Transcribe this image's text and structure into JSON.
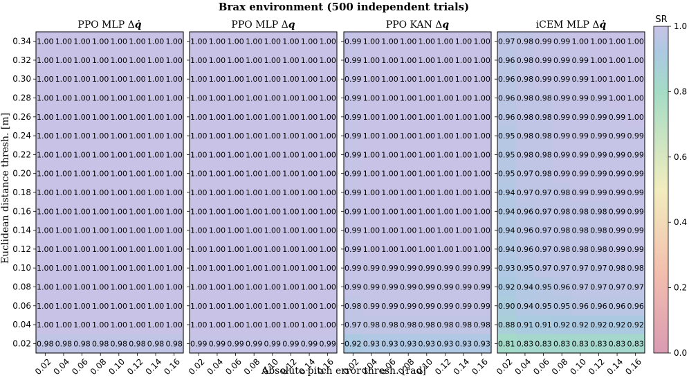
{
  "suptitle": "Brax environment (500 independent trials)",
  "xlabel": "Absolute pitch error thresh. [rad]",
  "ylabel": "Euclidean distance thresh. [m]",
  "colorbar": {
    "label": "SR",
    "ticks": [
      "0.0",
      "0.2",
      "0.4",
      "0.6",
      "0.8",
      "1.0"
    ],
    "range": [
      0.0,
      1.0
    ],
    "colormap": "spectral-like, low=pink #d99bb2, mid=cream #f2edbe, 0.8=aqua #a4dcc6, high=lavender #c8c3e6"
  },
  "chart_data": [
    {
      "type": "heatmap",
      "title": "PPO MLP Δq̇",
      "title_text": "PPO MLP Δ",
      "title_symbol": "q̇",
      "x": [
        "0.02",
        "0.04",
        "0.06",
        "0.08",
        "0.10",
        "0.12",
        "0.14",
        "0.16"
      ],
      "y": [
        "0.34",
        "0.32",
        "0.30",
        "0.28",
        "0.26",
        "0.24",
        "0.22",
        "0.20",
        "0.18",
        "0.16",
        "0.14",
        "0.12",
        "0.10",
        "0.08",
        "0.06",
        "0.04",
        "0.02"
      ],
      "values": [
        [
          "1.00",
          "1.00",
          "1.00",
          "1.00",
          "1.00",
          "1.00",
          "1.00",
          "1.00"
        ],
        [
          "1.00",
          "1.00",
          "1.00",
          "1.00",
          "1.00",
          "1.00",
          "1.00",
          "1.00"
        ],
        [
          "1.00",
          "1.00",
          "1.00",
          "1.00",
          "1.00",
          "1.00",
          "1.00",
          "1.00"
        ],
        [
          "1.00",
          "1.00",
          "1.00",
          "1.00",
          "1.00",
          "1.00",
          "1.00",
          "1.00"
        ],
        [
          "1.00",
          "1.00",
          "1.00",
          "1.00",
          "1.00",
          "1.00",
          "1.00",
          "1.00"
        ],
        [
          "1.00",
          "1.00",
          "1.00",
          "1.00",
          "1.00",
          "1.00",
          "1.00",
          "1.00"
        ],
        [
          "1.00",
          "1.00",
          "1.00",
          "1.00",
          "1.00",
          "1.00",
          "1.00",
          "1.00"
        ],
        [
          "1.00",
          "1.00",
          "1.00",
          "1.00",
          "1.00",
          "1.00",
          "1.00",
          "1.00"
        ],
        [
          "1.00",
          "1.00",
          "1.00",
          "1.00",
          "1.00",
          "1.00",
          "1.00",
          "1.00"
        ],
        [
          "1.00",
          "1.00",
          "1.00",
          "1.00",
          "1.00",
          "1.00",
          "1.00",
          "1.00"
        ],
        [
          "1.00",
          "1.00",
          "1.00",
          "1.00",
          "1.00",
          "1.00",
          "1.00",
          "1.00"
        ],
        [
          "1.00",
          "1.00",
          "1.00",
          "1.00",
          "1.00",
          "1.00",
          "1.00",
          "1.00"
        ],
        [
          "1.00",
          "1.00",
          "1.00",
          "1.00",
          "1.00",
          "1.00",
          "1.00",
          "1.00"
        ],
        [
          "1.00",
          "1.00",
          "1.00",
          "1.00",
          "1.00",
          "1.00",
          "1.00",
          "1.00"
        ],
        [
          "1.00",
          "1.00",
          "1.00",
          "1.00",
          "1.00",
          "1.00",
          "1.00",
          "1.00"
        ],
        [
          "1.00",
          "1.00",
          "1.00",
          "1.00",
          "1.00",
          "1.00",
          "1.00",
          "1.00"
        ],
        [
          "0.98",
          "0.98",
          "0.98",
          "0.98",
          "0.98",
          "0.98",
          "0.98",
          "0.98"
        ]
      ]
    },
    {
      "type": "heatmap",
      "title": "PPO MLP Δq",
      "title_text": "PPO MLP Δ",
      "title_symbol": "q",
      "x": [
        "0.02",
        "0.04",
        "0.06",
        "0.08",
        "0.10",
        "0.12",
        "0.14",
        "0.16"
      ],
      "y": [
        "0.34",
        "0.32",
        "0.30",
        "0.28",
        "0.26",
        "0.24",
        "0.22",
        "0.20",
        "0.18",
        "0.16",
        "0.14",
        "0.12",
        "0.10",
        "0.08",
        "0.06",
        "0.04",
        "0.02"
      ],
      "values": [
        [
          "1.00",
          "1.00",
          "1.00",
          "1.00",
          "1.00",
          "1.00",
          "1.00",
          "1.00"
        ],
        [
          "1.00",
          "1.00",
          "1.00",
          "1.00",
          "1.00",
          "1.00",
          "1.00",
          "1.00"
        ],
        [
          "1.00",
          "1.00",
          "1.00",
          "1.00",
          "1.00",
          "1.00",
          "1.00",
          "1.00"
        ],
        [
          "1.00",
          "1.00",
          "1.00",
          "1.00",
          "1.00",
          "1.00",
          "1.00",
          "1.00"
        ],
        [
          "1.00",
          "1.00",
          "1.00",
          "1.00",
          "1.00",
          "1.00",
          "1.00",
          "1.00"
        ],
        [
          "1.00",
          "1.00",
          "1.00",
          "1.00",
          "1.00",
          "1.00",
          "1.00",
          "1.00"
        ],
        [
          "1.00",
          "1.00",
          "1.00",
          "1.00",
          "1.00",
          "1.00",
          "1.00",
          "1.00"
        ],
        [
          "1.00",
          "1.00",
          "1.00",
          "1.00",
          "1.00",
          "1.00",
          "1.00",
          "1.00"
        ],
        [
          "1.00",
          "1.00",
          "1.00",
          "1.00",
          "1.00",
          "1.00",
          "1.00",
          "1.00"
        ],
        [
          "1.00",
          "1.00",
          "1.00",
          "1.00",
          "1.00",
          "1.00",
          "1.00",
          "1.00"
        ],
        [
          "1.00",
          "1.00",
          "1.00",
          "1.00",
          "1.00",
          "1.00",
          "1.00",
          "1.00"
        ],
        [
          "1.00",
          "1.00",
          "1.00",
          "1.00",
          "1.00",
          "1.00",
          "1.00",
          "1.00"
        ],
        [
          "1.00",
          "1.00",
          "1.00",
          "1.00",
          "1.00",
          "1.00",
          "1.00",
          "1.00"
        ],
        [
          "1.00",
          "1.00",
          "1.00",
          "1.00",
          "1.00",
          "1.00",
          "1.00",
          "1.00"
        ],
        [
          "1.00",
          "1.00",
          "1.00",
          "1.00",
          "1.00",
          "1.00",
          "1.00",
          "1.00"
        ],
        [
          "1.00",
          "1.00",
          "1.00",
          "1.00",
          "1.00",
          "1.00",
          "1.00",
          "1.00"
        ],
        [
          "0.99",
          "0.99",
          "0.99",
          "0.99",
          "0.99",
          "0.99",
          "0.99",
          "0.99"
        ]
      ]
    },
    {
      "type": "heatmap",
      "title": "PPO KAN Δq",
      "title_text": "PPO KAN Δ",
      "title_symbol": "q",
      "x": [
        "0.02",
        "0.04",
        "0.06",
        "0.08",
        "0.10",
        "0.12",
        "0.14",
        "0.16"
      ],
      "y": [
        "0.34",
        "0.32",
        "0.30",
        "0.28",
        "0.26",
        "0.24",
        "0.22",
        "0.20",
        "0.18",
        "0.16",
        "0.14",
        "0.12",
        "0.10",
        "0.08",
        "0.06",
        "0.04",
        "0.02"
      ],
      "values": [
        [
          "0.99",
          "1.00",
          "1.00",
          "1.00",
          "1.00",
          "1.00",
          "1.00",
          "1.00"
        ],
        [
          "0.99",
          "1.00",
          "1.00",
          "1.00",
          "1.00",
          "1.00",
          "1.00",
          "1.00"
        ],
        [
          "0.99",
          "1.00",
          "1.00",
          "1.00",
          "1.00",
          "1.00",
          "1.00",
          "1.00"
        ],
        [
          "0.99",
          "1.00",
          "1.00",
          "1.00",
          "1.00",
          "1.00",
          "1.00",
          "1.00"
        ],
        [
          "0.99",
          "1.00",
          "1.00",
          "1.00",
          "1.00",
          "1.00",
          "1.00",
          "1.00"
        ],
        [
          "0.99",
          "1.00",
          "1.00",
          "1.00",
          "1.00",
          "1.00",
          "1.00",
          "1.00"
        ],
        [
          "0.99",
          "1.00",
          "1.00",
          "1.00",
          "1.00",
          "1.00",
          "1.00",
          "1.00"
        ],
        [
          "0.99",
          "1.00",
          "1.00",
          "1.00",
          "1.00",
          "1.00",
          "1.00",
          "1.00"
        ],
        [
          "0.99",
          "1.00",
          "1.00",
          "1.00",
          "1.00",
          "1.00",
          "1.00",
          "1.00"
        ],
        [
          "0.99",
          "1.00",
          "1.00",
          "1.00",
          "1.00",
          "1.00",
          "1.00",
          "1.00"
        ],
        [
          "0.99",
          "1.00",
          "1.00",
          "1.00",
          "1.00",
          "1.00",
          "1.00",
          "1.00"
        ],
        [
          "0.99",
          "1.00",
          "1.00",
          "1.00",
          "1.00",
          "1.00",
          "1.00",
          "1.00"
        ],
        [
          "0.99",
          "0.99",
          "0.99",
          "0.99",
          "0.99",
          "0.99",
          "0.99",
          "0.99"
        ],
        [
          "0.99",
          "0.99",
          "0.99",
          "0.99",
          "0.99",
          "0.99",
          "0.99",
          "0.99"
        ],
        [
          "0.98",
          "0.99",
          "0.99",
          "0.99",
          "0.99",
          "0.99",
          "0.99",
          "0.99"
        ],
        [
          "0.97",
          "0.98",
          "0.98",
          "0.98",
          "0.98",
          "0.98",
          "0.98",
          "0.98"
        ],
        [
          "0.92",
          "0.93",
          "0.93",
          "0.93",
          "0.93",
          "0.93",
          "0.93",
          "0.93"
        ]
      ]
    },
    {
      "type": "heatmap",
      "title": "iCEM MLP Δq̇",
      "title_text": "iCEM MLP Δ",
      "title_symbol": "q̇",
      "x": [
        "0.02",
        "0.04",
        "0.06",
        "0.08",
        "0.10",
        "0.12",
        "0.14",
        "0.16"
      ],
      "y": [
        "0.34",
        "0.32",
        "0.30",
        "0.28",
        "0.26",
        "0.24",
        "0.22",
        "0.20",
        "0.18",
        "0.16",
        "0.14",
        "0.12",
        "0.10",
        "0.08",
        "0.06",
        "0.04",
        "0.02"
      ],
      "values": [
        [
          "0.97",
          "0.98",
          "0.99",
          "0.99",
          "1.00",
          "1.00",
          "1.00",
          "1.00"
        ],
        [
          "0.96",
          "0.98",
          "0.99",
          "0.99",
          "0.99",
          "1.00",
          "1.00",
          "1.00"
        ],
        [
          "0.96",
          "0.98",
          "0.99",
          "0.99",
          "0.99",
          "1.00",
          "1.00",
          "1.00"
        ],
        [
          "0.96",
          "0.98",
          "0.98",
          "0.99",
          "0.99",
          "0.99",
          "1.00",
          "1.00"
        ],
        [
          "0.96",
          "0.98",
          "0.98",
          "0.99",
          "0.99",
          "0.99",
          "0.99",
          "1.00"
        ],
        [
          "0.95",
          "0.98",
          "0.98",
          "0.99",
          "0.99",
          "0.99",
          "0.99",
          "0.99"
        ],
        [
          "0.95",
          "0.98",
          "0.98",
          "0.99",
          "0.99",
          "0.99",
          "0.99",
          "0.99"
        ],
        [
          "0.95",
          "0.97",
          "0.98",
          "0.99",
          "0.99",
          "0.99",
          "0.99",
          "0.99"
        ],
        [
          "0.94",
          "0.97",
          "0.97",
          "0.98",
          "0.99",
          "0.99",
          "0.99",
          "0.99"
        ],
        [
          "0.94",
          "0.96",
          "0.97",
          "0.98",
          "0.98",
          "0.98",
          "0.99",
          "0.99"
        ],
        [
          "0.94",
          "0.96",
          "0.97",
          "0.98",
          "0.98",
          "0.98",
          "0.99",
          "0.99"
        ],
        [
          "0.94",
          "0.96",
          "0.97",
          "0.98",
          "0.98",
          "0.98",
          "0.99",
          "0.99"
        ],
        [
          "0.93",
          "0.95",
          "0.97",
          "0.97",
          "0.97",
          "0.97",
          "0.98",
          "0.98"
        ],
        [
          "0.92",
          "0.94",
          "0.95",
          "0.96",
          "0.97",
          "0.97",
          "0.97",
          "0.97"
        ],
        [
          "0.90",
          "0.94",
          "0.95",
          "0.95",
          "0.96",
          "0.96",
          "0.96",
          "0.96"
        ],
        [
          "0.88",
          "0.91",
          "0.91",
          "0.92",
          "0.92",
          "0.92",
          "0.92",
          "0.92"
        ],
        [
          "0.81",
          "0.83",
          "0.83",
          "0.83",
          "0.83",
          "0.83",
          "0.83",
          "0.83"
        ]
      ]
    }
  ]
}
